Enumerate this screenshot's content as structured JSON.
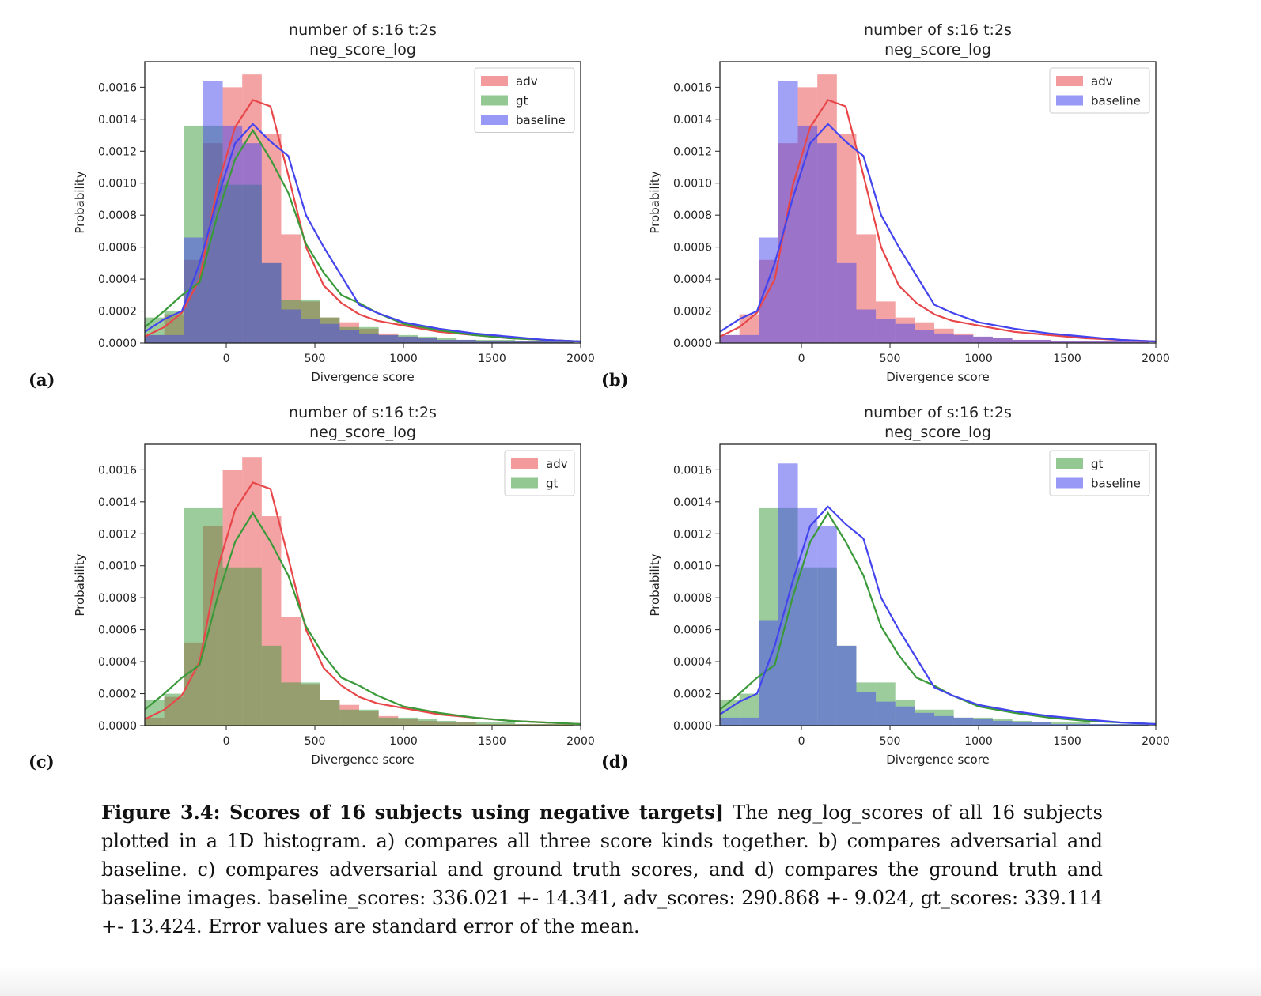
{
  "panels": [
    {
      "letter": "(a)"
    },
    {
      "letter": "(b)"
    },
    {
      "letter": "(c)"
    },
    {
      "letter": "(d)"
    }
  ],
  "caption": {
    "label": "Figure 3.4: Scores of 16 subjects using negative targets]",
    "text": "The neg_log_scores of all 16 subjects plotted in a 1D histogram. a) compares all three score kinds together. b) compares adversarial and baseline. c) compares adversarial and ground truth scores, and d) compares the ground truth and baseline images. baseline_scores: 336.021 +- 14.341, adv_scores: 290.868 +- 9.024, gt_scores: 339.114 +- 13.424. Error values are standard error of the mean."
  },
  "colors": {
    "adv": "#e8474a",
    "gt": "#3a9a3a",
    "baseline": "#4444ee"
  },
  "chart_data": [
    {
      "type": "bar",
      "title": "number of s:16 t:2s\nneg_score_log",
      "xlabel": "Divergence score",
      "ylabel": "Probability",
      "xlim": [
        -460,
        2000
      ],
      "ylim": [
        0,
        0.00176
      ],
      "xticks": [
        0,
        500,
        1000,
        1500,
        2000
      ],
      "yticks": [
        "0.0000",
        "0.0002",
        "0.0004",
        "0.0006",
        "0.0008",
        "0.0010",
        "0.0012",
        "0.0014",
        "0.0016"
      ],
      "legend": "top-right",
      "bin_edges": [
        -460,
        -350,
        -240,
        -130,
        -20,
        90,
        200,
        310,
        420,
        530,
        640,
        750,
        860,
        970,
        1080,
        1190,
        1300,
        1410,
        1520,
        1630,
        1740,
        1850,
        1960
      ],
      "series": [
        {
          "name": "adv",
          "key": "adv",
          "hist": [
            5e-05,
            0.00018,
            0.00052,
            0.00125,
            0.0016,
            0.00168,
            0.00131,
            0.00068,
            0.00026,
            0.00016,
            0.00013,
            9e-05,
            6e-05,
            4e-05,
            3e-05,
            2e-05,
            2e-05,
            1e-05,
            1e-05,
            1e-05,
            1e-05,
            1e-05
          ],
          "kde_x": [
            -460,
            -350,
            -250,
            -150,
            -50,
            50,
            150,
            250,
            350,
            450,
            550,
            650,
            750,
            850,
            1000,
            1200,
            1400,
            1600,
            1800,
            2000
          ],
          "kde_y": [
            4e-05,
            0.0001,
            0.00019,
            0.0004,
            0.00098,
            0.00135,
            0.00152,
            0.00148,
            0.00105,
            0.0006,
            0.00036,
            0.00025,
            0.00018,
            0.00014,
            0.00011,
            7e-05,
            5e-05,
            3e-05,
            2e-05,
            1e-05
          ]
        },
        {
          "name": "gt",
          "key": "gt",
          "hist": [
            0.00016,
            0.0002,
            0.00136,
            0.00136,
            0.00099,
            0.00099,
            0.0005,
            0.00027,
            0.00027,
            0.00016,
            0.0001,
            0.0001,
            5e-05,
            5e-05,
            4e-05,
            3e-05,
            2e-05,
            2e-05,
            2e-05,
            1e-05,
            1e-05,
            1e-05
          ],
          "kde_x": [
            -460,
            -350,
            -250,
            -150,
            -50,
            50,
            150,
            250,
            350,
            450,
            550,
            650,
            750,
            850,
            1000,
            1200,
            1400,
            1600,
            1800,
            2000
          ],
          "kde_y": [
            0.0001,
            0.0002,
            0.0003,
            0.00038,
            0.0008,
            0.00115,
            0.00133,
            0.00115,
            0.00094,
            0.00062,
            0.00044,
            0.0003,
            0.00025,
            0.00019,
            0.00012,
            8e-05,
            5e-05,
            3e-05,
            2e-05,
            1e-05
          ]
        },
        {
          "name": "baseline",
          "key": "baseline",
          "hist": [
            5e-05,
            5e-05,
            0.00066,
            0.00164,
            0.00136,
            0.00125,
            0.0005,
            0.00021,
            0.00015,
            0.00012,
            8e-05,
            6e-05,
            5e-05,
            4e-05,
            3e-05,
            2e-05,
            2e-05,
            1e-05,
            1e-05,
            1e-05,
            1e-05,
            1e-05
          ],
          "kde_x": [
            -460,
            -350,
            -250,
            -150,
            -50,
            50,
            150,
            250,
            350,
            450,
            550,
            650,
            750,
            850,
            1000,
            1200,
            1400,
            1600,
            1800,
            2000
          ],
          "kde_y": [
            7e-05,
            0.00015,
            0.0002,
            0.0005,
            0.0009,
            0.00125,
            0.00137,
            0.00126,
            0.00117,
            0.0008,
            0.0006,
            0.00042,
            0.00024,
            0.00019,
            0.00013,
            9e-05,
            6e-05,
            4e-05,
            2e-05,
            1e-05
          ]
        }
      ]
    },
    {
      "type": "bar",
      "title": "number of s:16 t:2s\nneg_score_log",
      "xlabel": "Divergence score",
      "ylabel": "Probability",
      "xlim": [
        -460,
        2000
      ],
      "ylim": [
        0,
        0.00176
      ],
      "xticks": [
        0,
        500,
        1000,
        1500,
        2000
      ],
      "yticks": [
        "0.0000",
        "0.0002",
        "0.0004",
        "0.0006",
        "0.0008",
        "0.0010",
        "0.0012",
        "0.0014",
        "0.0016"
      ],
      "legend": "top-right",
      "bin_edges": [
        -460,
        -350,
        -240,
        -130,
        -20,
        90,
        200,
        310,
        420,
        530,
        640,
        750,
        860,
        970,
        1080,
        1190,
        1300,
        1410,
        1520,
        1630,
        1740,
        1850,
        1960
      ],
      "series": [
        {
          "name": "adv",
          "key": "adv",
          "hist": [
            5e-05,
            0.00018,
            0.00052,
            0.00125,
            0.0016,
            0.00168,
            0.00131,
            0.00068,
            0.00026,
            0.00016,
            0.00013,
            9e-05,
            6e-05,
            4e-05,
            3e-05,
            2e-05,
            2e-05,
            1e-05,
            1e-05,
            1e-05,
            1e-05,
            1e-05
          ],
          "kde_x": [
            -460,
            -350,
            -250,
            -150,
            -50,
            50,
            150,
            250,
            350,
            450,
            550,
            650,
            750,
            850,
            1000,
            1200,
            1400,
            1600,
            1800,
            2000
          ],
          "kde_y": [
            4e-05,
            0.0001,
            0.00019,
            0.0004,
            0.00098,
            0.00135,
            0.00152,
            0.00148,
            0.00105,
            0.0006,
            0.00036,
            0.00025,
            0.00018,
            0.00014,
            0.00011,
            7e-05,
            5e-05,
            3e-05,
            2e-05,
            1e-05
          ]
        },
        {
          "name": "baseline",
          "key": "baseline",
          "hist": [
            5e-05,
            5e-05,
            0.00066,
            0.00164,
            0.00136,
            0.00125,
            0.0005,
            0.00021,
            0.00015,
            0.00012,
            8e-05,
            6e-05,
            5e-05,
            4e-05,
            3e-05,
            2e-05,
            2e-05,
            1e-05,
            1e-05,
            1e-05,
            1e-05,
            1e-05
          ],
          "kde_x": [
            -460,
            -350,
            -250,
            -150,
            -50,
            50,
            150,
            250,
            350,
            450,
            550,
            650,
            750,
            850,
            1000,
            1200,
            1400,
            1600,
            1800,
            2000
          ],
          "kde_y": [
            7e-05,
            0.00015,
            0.0002,
            0.0005,
            0.0009,
            0.00125,
            0.00137,
            0.00126,
            0.00117,
            0.0008,
            0.0006,
            0.00042,
            0.00024,
            0.00019,
            0.00013,
            9e-05,
            6e-05,
            4e-05,
            2e-05,
            1e-05
          ]
        }
      ]
    },
    {
      "type": "bar",
      "title": "number of s:16 t:2s\nneg_score_log",
      "xlabel": "Divergence score",
      "ylabel": "Probability",
      "xlim": [
        -460,
        2000
      ],
      "ylim": [
        0,
        0.00176
      ],
      "xticks": [
        0,
        500,
        1000,
        1500,
        2000
      ],
      "yticks": [
        "0.0000",
        "0.0002",
        "0.0004",
        "0.0006",
        "0.0008",
        "0.0010",
        "0.0012",
        "0.0014",
        "0.0016"
      ],
      "legend": "top-right",
      "bin_edges": [
        -460,
        -350,
        -240,
        -130,
        -20,
        90,
        200,
        310,
        420,
        530,
        640,
        750,
        860,
        970,
        1080,
        1190,
        1300,
        1410,
        1520,
        1630,
        1740,
        1850,
        1960
      ],
      "series": [
        {
          "name": "adv",
          "key": "adv",
          "hist": [
            5e-05,
            0.00018,
            0.00052,
            0.00125,
            0.0016,
            0.00168,
            0.00131,
            0.00068,
            0.00026,
            0.00016,
            0.00013,
            9e-05,
            6e-05,
            4e-05,
            3e-05,
            2e-05,
            2e-05,
            1e-05,
            1e-05,
            1e-05,
            1e-05,
            1e-05
          ],
          "kde_x": [
            -460,
            -350,
            -250,
            -150,
            -50,
            50,
            150,
            250,
            350,
            450,
            550,
            650,
            750,
            850,
            1000,
            1200,
            1400,
            1600,
            1800,
            2000
          ],
          "kde_y": [
            4e-05,
            0.0001,
            0.00019,
            0.0004,
            0.00098,
            0.00135,
            0.00152,
            0.00148,
            0.00105,
            0.0006,
            0.00036,
            0.00025,
            0.00018,
            0.00014,
            0.00011,
            7e-05,
            5e-05,
            3e-05,
            2e-05,
            1e-05
          ]
        },
        {
          "name": "gt",
          "key": "gt",
          "hist": [
            0.00016,
            0.0002,
            0.00136,
            0.00136,
            0.00099,
            0.00099,
            0.0005,
            0.00027,
            0.00027,
            0.00016,
            0.0001,
            0.0001,
            5e-05,
            5e-05,
            4e-05,
            3e-05,
            2e-05,
            2e-05,
            2e-05,
            1e-05,
            1e-05,
            1e-05
          ],
          "kde_x": [
            -460,
            -350,
            -250,
            -150,
            -50,
            50,
            150,
            250,
            350,
            450,
            550,
            650,
            750,
            850,
            1000,
            1200,
            1400,
            1600,
            1800,
            2000
          ],
          "kde_y": [
            0.0001,
            0.0002,
            0.0003,
            0.00038,
            0.0008,
            0.00115,
            0.00133,
            0.00115,
            0.00094,
            0.00062,
            0.00044,
            0.0003,
            0.00025,
            0.00019,
            0.00012,
            8e-05,
            5e-05,
            3e-05,
            2e-05,
            1e-05
          ]
        }
      ]
    },
    {
      "type": "bar",
      "title": "number of s:16 t:2s\nneg_score_log",
      "xlabel": "Divergence score",
      "ylabel": "Probability",
      "xlim": [
        -460,
        2000
      ],
      "ylim": [
        0,
        0.00176
      ],
      "xticks": [
        0,
        500,
        1000,
        1500,
        2000
      ],
      "yticks": [
        "0.0000",
        "0.0002",
        "0.0004",
        "0.0006",
        "0.0008",
        "0.0010",
        "0.0012",
        "0.0014",
        "0.0016"
      ],
      "legend": "top-right",
      "bin_edges": [
        -460,
        -350,
        -240,
        -130,
        -20,
        90,
        200,
        310,
        420,
        530,
        640,
        750,
        860,
        970,
        1080,
        1190,
        1300,
        1410,
        1520,
        1630,
        1740,
        1850,
        1960
      ],
      "series": [
        {
          "name": "gt",
          "key": "gt",
          "hist": [
            0.00016,
            0.0002,
            0.00136,
            0.00136,
            0.00099,
            0.00099,
            0.0005,
            0.00027,
            0.00027,
            0.00016,
            0.0001,
            0.0001,
            5e-05,
            5e-05,
            4e-05,
            3e-05,
            2e-05,
            2e-05,
            2e-05,
            1e-05,
            1e-05,
            1e-05
          ],
          "kde_x": [
            -460,
            -350,
            -250,
            -150,
            -50,
            50,
            150,
            250,
            350,
            450,
            550,
            650,
            750,
            850,
            1000,
            1200,
            1400,
            1600,
            1800,
            2000
          ],
          "kde_y": [
            0.0001,
            0.0002,
            0.0003,
            0.00038,
            0.0008,
            0.00115,
            0.00133,
            0.00115,
            0.00094,
            0.00062,
            0.00044,
            0.0003,
            0.00025,
            0.00019,
            0.00012,
            8e-05,
            5e-05,
            3e-05,
            2e-05,
            1e-05
          ]
        },
        {
          "name": "baseline",
          "key": "baseline",
          "hist": [
            5e-05,
            5e-05,
            0.00066,
            0.00164,
            0.00136,
            0.00125,
            0.0005,
            0.00021,
            0.00015,
            0.00012,
            8e-05,
            6e-05,
            5e-05,
            4e-05,
            3e-05,
            2e-05,
            2e-05,
            1e-05,
            1e-05,
            1e-05,
            1e-05,
            1e-05
          ],
          "kde_x": [
            -460,
            -350,
            -250,
            -150,
            -50,
            50,
            150,
            250,
            350,
            450,
            550,
            650,
            750,
            850,
            1000,
            1200,
            1400,
            1600,
            1800,
            2000
          ],
          "kde_y": [
            7e-05,
            0.00015,
            0.0002,
            0.0005,
            0.0009,
            0.00125,
            0.00137,
            0.00126,
            0.00117,
            0.0008,
            0.0006,
            0.00042,
            0.00024,
            0.00019,
            0.00013,
            9e-05,
            6e-05,
            4e-05,
            2e-05,
            1e-05
          ]
        }
      ]
    }
  ]
}
